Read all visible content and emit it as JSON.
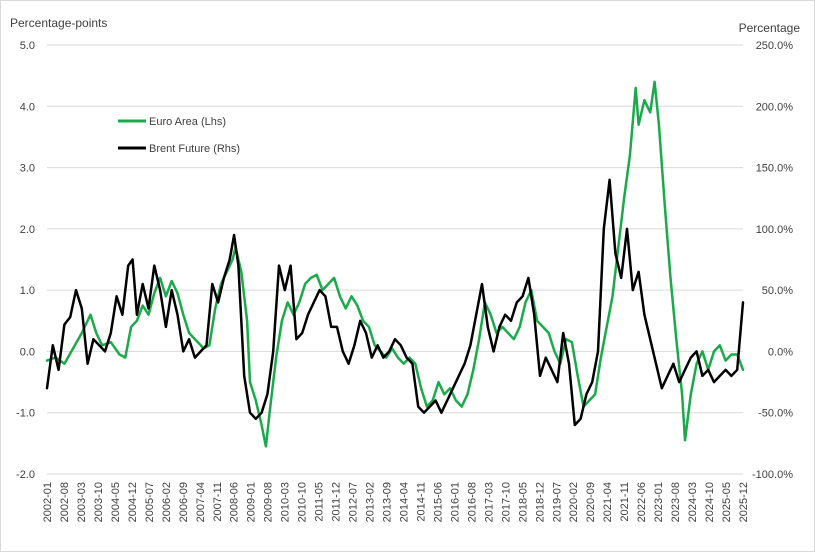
{
  "chart_data": {
    "type": "line",
    "title": "",
    "ylabel_left": "Percentage-points",
    "ylabel_right": "Percentage",
    "ylim_left": [
      -2.0,
      5.0
    ],
    "ylim_right": [
      -100.0,
      250.0
    ],
    "left_ticks": [
      "5.0",
      "4.0",
      "3.0",
      "2.0",
      "1.0",
      "0.0",
      "-1.0",
      "-2.0"
    ],
    "right_ticks": [
      "250.0%",
      "200.0%",
      "150.0%",
      "100.0%",
      "50.0%",
      "0.0%",
      "-50.0%",
      "-100.0%"
    ],
    "grid": true,
    "legend_position": "upper-left",
    "x_labels": [
      "2002-01",
      "2002-08",
      "2003-03",
      "2003-10",
      "2004-05",
      "2004-12",
      "2005-07",
      "2006-02",
      "2006-09",
      "2007-04",
      "2007-11",
      "2008-06",
      "2009-01",
      "2009-08",
      "2010-03",
      "2010-10",
      "2011-05",
      "2011-12",
      "2012-07",
      "2013-02",
      "2013-09",
      "2014-04",
      "2014-11",
      "2015-06",
      "2016-01",
      "2016-08",
      "2017-03",
      "2017-10",
      "2018-05",
      "2018-12",
      "2019-07",
      "2020-02",
      "2020-09",
      "2021-04",
      "2021-11",
      "2022-06",
      "2023-01",
      "2023-08",
      "2024-03",
      "2024-10",
      "2025-05",
      "2025-12"
    ],
    "series": [
      {
        "name": "Euro Area (Lhs)",
        "axis": "left",
        "color": "#1aaa4b",
        "points": [
          [
            2002.0,
            -0.15
          ],
          [
            2002.3,
            -0.1
          ],
          [
            2002.6,
            -0.2
          ],
          [
            2002.9,
            0.05
          ],
          [
            2003.2,
            0.3
          ],
          [
            2003.5,
            0.6
          ],
          [
            2003.7,
            0.3
          ],
          [
            2003.9,
            0.1
          ],
          [
            2004.2,
            0.15
          ],
          [
            2004.5,
            -0.05
          ],
          [
            2004.7,
            -0.1
          ],
          [
            2004.9,
            0.4
          ],
          [
            2005.1,
            0.5
          ],
          [
            2005.3,
            0.75
          ],
          [
            2005.5,
            0.6
          ],
          [
            2005.7,
            0.95
          ],
          [
            2005.9,
            1.2
          ],
          [
            2006.1,
            0.9
          ],
          [
            2006.3,
            1.15
          ],
          [
            2006.5,
            0.95
          ],
          [
            2006.7,
            0.6
          ],
          [
            2006.9,
            0.3
          ],
          [
            2007.1,
            0.2
          ],
          [
            2007.4,
            0.05
          ],
          [
            2007.6,
            0.1
          ],
          [
            2007.8,
            0.7
          ],
          [
            2008.0,
            1.1
          ],
          [
            2008.2,
            1.3
          ],
          [
            2008.4,
            1.5
          ],
          [
            2008.5,
            1.7
          ],
          [
            2008.7,
            1.3
          ],
          [
            2008.9,
            0.5
          ],
          [
            2009.0,
            -0.5
          ],
          [
            2009.2,
            -0.8
          ],
          [
            2009.4,
            -1.2
          ],
          [
            2009.55,
            -1.55
          ],
          [
            2009.7,
            -0.9
          ],
          [
            2009.9,
            -0.1
          ],
          [
            2010.1,
            0.5
          ],
          [
            2010.3,
            0.8
          ],
          [
            2010.5,
            0.6
          ],
          [
            2010.7,
            0.8
          ],
          [
            2010.9,
            1.1
          ],
          [
            2011.1,
            1.2
          ],
          [
            2011.3,
            1.25
          ],
          [
            2011.5,
            1.0
          ],
          [
            2011.7,
            1.1
          ],
          [
            2011.9,
            1.2
          ],
          [
            2012.1,
            0.9
          ],
          [
            2012.3,
            0.7
          ],
          [
            2012.5,
            0.9
          ],
          [
            2012.7,
            0.75
          ],
          [
            2012.9,
            0.5
          ],
          [
            2013.1,
            0.4
          ],
          [
            2013.3,
            0.1
          ],
          [
            2013.5,
            0.0
          ],
          [
            2013.7,
            -0.1
          ],
          [
            2013.9,
            0.05
          ],
          [
            2014.1,
            -0.1
          ],
          [
            2014.3,
            -0.2
          ],
          [
            2014.5,
            -0.1
          ],
          [
            2014.7,
            -0.2
          ],
          [
            2014.9,
            -0.6
          ],
          [
            2015.1,
            -0.9
          ],
          [
            2015.3,
            -0.8
          ],
          [
            2015.5,
            -0.5
          ],
          [
            2015.7,
            -0.7
          ],
          [
            2015.9,
            -0.6
          ],
          [
            2016.1,
            -0.8
          ],
          [
            2016.3,
            -0.9
          ],
          [
            2016.5,
            -0.7
          ],
          [
            2016.7,
            -0.3
          ],
          [
            2016.9,
            0.2
          ],
          [
            2017.1,
            0.8
          ],
          [
            2017.3,
            0.6
          ],
          [
            2017.5,
            0.3
          ],
          [
            2017.7,
            0.4
          ],
          [
            2017.9,
            0.3
          ],
          [
            2018.1,
            0.2
          ],
          [
            2018.3,
            0.4
          ],
          [
            2018.5,
            0.8
          ],
          [
            2018.7,
            1.0
          ],
          [
            2018.9,
            0.5
          ],
          [
            2019.1,
            0.4
          ],
          [
            2019.3,
            0.3
          ],
          [
            2019.5,
            0.0
          ],
          [
            2019.7,
            -0.2
          ],
          [
            2019.9,
            0.2
          ],
          [
            2020.1,
            0.15
          ],
          [
            2020.3,
            -0.4
          ],
          [
            2020.5,
            -0.9
          ],
          [
            2020.7,
            -0.8
          ],
          [
            2020.9,
            -0.7
          ],
          [
            2021.1,
            -0.1
          ],
          [
            2021.3,
            0.4
          ],
          [
            2021.5,
            0.9
          ],
          [
            2021.7,
            1.7
          ],
          [
            2021.9,
            2.5
          ],
          [
            2022.1,
            3.2
          ],
          [
            2022.3,
            4.3
          ],
          [
            2022.4,
            3.7
          ],
          [
            2022.6,
            4.1
          ],
          [
            2022.8,
            3.9
          ],
          [
            2022.95,
            4.4
          ],
          [
            2023.1,
            3.7
          ],
          [
            2023.3,
            2.4
          ],
          [
            2023.5,
            1.2
          ],
          [
            2023.7,
            0.2
          ],
          [
            2023.9,
            -0.7
          ],
          [
            2024.0,
            -1.45
          ],
          [
            2024.2,
            -0.7
          ],
          [
            2024.4,
            -0.2
          ],
          [
            2024.6,
            0.0
          ],
          [
            2024.8,
            -0.3
          ],
          [
            2025.0,
            0.0
          ],
          [
            2025.2,
            0.1
          ],
          [
            2025.4,
            -0.15
          ],
          [
            2025.6,
            -0.05
          ],
          [
            2025.8,
            -0.05
          ],
          [
            2026.0,
            -0.3
          ]
        ]
      },
      {
        "name": "Brent Future (Rhs)",
        "axis": "right",
        "color": "#000000",
        "points": [
          [
            2002.0,
            -30
          ],
          [
            2002.2,
            5
          ],
          [
            2002.4,
            -15
          ],
          [
            2002.6,
            22
          ],
          [
            2002.8,
            28
          ],
          [
            2003.0,
            50
          ],
          [
            2003.2,
            35
          ],
          [
            2003.4,
            -10
          ],
          [
            2003.6,
            10
          ],
          [
            2003.8,
            5
          ],
          [
            2004.0,
            0
          ],
          [
            2004.2,
            15
          ],
          [
            2004.4,
            45
          ],
          [
            2004.6,
            30
          ],
          [
            2004.8,
            70
          ],
          [
            2004.95,
            75
          ],
          [
            2005.1,
            30
          ],
          [
            2005.3,
            55
          ],
          [
            2005.5,
            35
          ],
          [
            2005.7,
            70
          ],
          [
            2005.9,
            50
          ],
          [
            2006.1,
            20
          ],
          [
            2006.3,
            50
          ],
          [
            2006.5,
            30
          ],
          [
            2006.7,
            0
          ],
          [
            2006.9,
            10
          ],
          [
            2007.1,
            -5
          ],
          [
            2007.3,
            0
          ],
          [
            2007.5,
            5
          ],
          [
            2007.7,
            55
          ],
          [
            2007.9,
            40
          ],
          [
            2008.1,
            60
          ],
          [
            2008.3,
            75
          ],
          [
            2008.45,
            95
          ],
          [
            2008.6,
            70
          ],
          [
            2008.8,
            -20
          ],
          [
            2009.0,
            -50
          ],
          [
            2009.2,
            -55
          ],
          [
            2009.4,
            -50
          ],
          [
            2009.6,
            -35
          ],
          [
            2009.8,
            0
          ],
          [
            2010.0,
            70
          ],
          [
            2010.2,
            50
          ],
          [
            2010.4,
            70
          ],
          [
            2010.6,
            10
          ],
          [
            2010.8,
            15
          ],
          [
            2011.0,
            30
          ],
          [
            2011.2,
            40
          ],
          [
            2011.4,
            50
          ],
          [
            2011.6,
            45
          ],
          [
            2011.8,
            20
          ],
          [
            2012.0,
            20
          ],
          [
            2012.2,
            0
          ],
          [
            2012.4,
            -10
          ],
          [
            2012.6,
            5
          ],
          [
            2012.8,
            25
          ],
          [
            2013.0,
            15
          ],
          [
            2013.2,
            -5
          ],
          [
            2013.4,
            5
          ],
          [
            2013.6,
            -5
          ],
          [
            2013.8,
            0
          ],
          [
            2014.0,
            10
          ],
          [
            2014.2,
            5
          ],
          [
            2014.4,
            -5
          ],
          [
            2014.6,
            -10
          ],
          [
            2014.8,
            -45
          ],
          [
            2015.0,
            -50
          ],
          [
            2015.2,
            -45
          ],
          [
            2015.4,
            -40
          ],
          [
            2015.6,
            -50
          ],
          [
            2015.8,
            -40
          ],
          [
            2016.0,
            -30
          ],
          [
            2016.2,
            -20
          ],
          [
            2016.4,
            -10
          ],
          [
            2016.6,
            5
          ],
          [
            2016.8,
            30
          ],
          [
            2017.0,
            55
          ],
          [
            2017.2,
            20
          ],
          [
            2017.4,
            0
          ],
          [
            2017.6,
            20
          ],
          [
            2017.8,
            30
          ],
          [
            2018.0,
            25
          ],
          [
            2018.2,
            40
          ],
          [
            2018.4,
            45
          ],
          [
            2018.6,
            60
          ],
          [
            2018.8,
            30
          ],
          [
            2019.0,
            -20
          ],
          [
            2019.2,
            -5
          ],
          [
            2019.4,
            -15
          ],
          [
            2019.6,
            -25
          ],
          [
            2019.8,
            15
          ],
          [
            2020.0,
            -10
          ],
          [
            2020.2,
            -60
          ],
          [
            2020.4,
            -55
          ],
          [
            2020.6,
            -35
          ],
          [
            2020.8,
            -25
          ],
          [
            2021.0,
            0
          ],
          [
            2021.2,
            100
          ],
          [
            2021.4,
            140
          ],
          [
            2021.6,
            80
          ],
          [
            2021.8,
            60
          ],
          [
            2022.0,
            100
          ],
          [
            2022.2,
            50
          ],
          [
            2022.4,
            65
          ],
          [
            2022.6,
            30
          ],
          [
            2022.8,
            10
          ],
          [
            2023.0,
            -10
          ],
          [
            2023.2,
            -30
          ],
          [
            2023.4,
            -20
          ],
          [
            2023.6,
            -10
          ],
          [
            2023.8,
            -25
          ],
          [
            2024.0,
            -15
          ],
          [
            2024.2,
            -5
          ],
          [
            2024.4,
            0
          ],
          [
            2024.6,
            -20
          ],
          [
            2024.8,
            -15
          ],
          [
            2025.0,
            -25
          ],
          [
            2025.2,
            -20
          ],
          [
            2025.4,
            -15
          ],
          [
            2025.6,
            -20
          ],
          [
            2025.8,
            -15
          ],
          [
            2026.0,
            40
          ]
        ]
      }
    ]
  }
}
